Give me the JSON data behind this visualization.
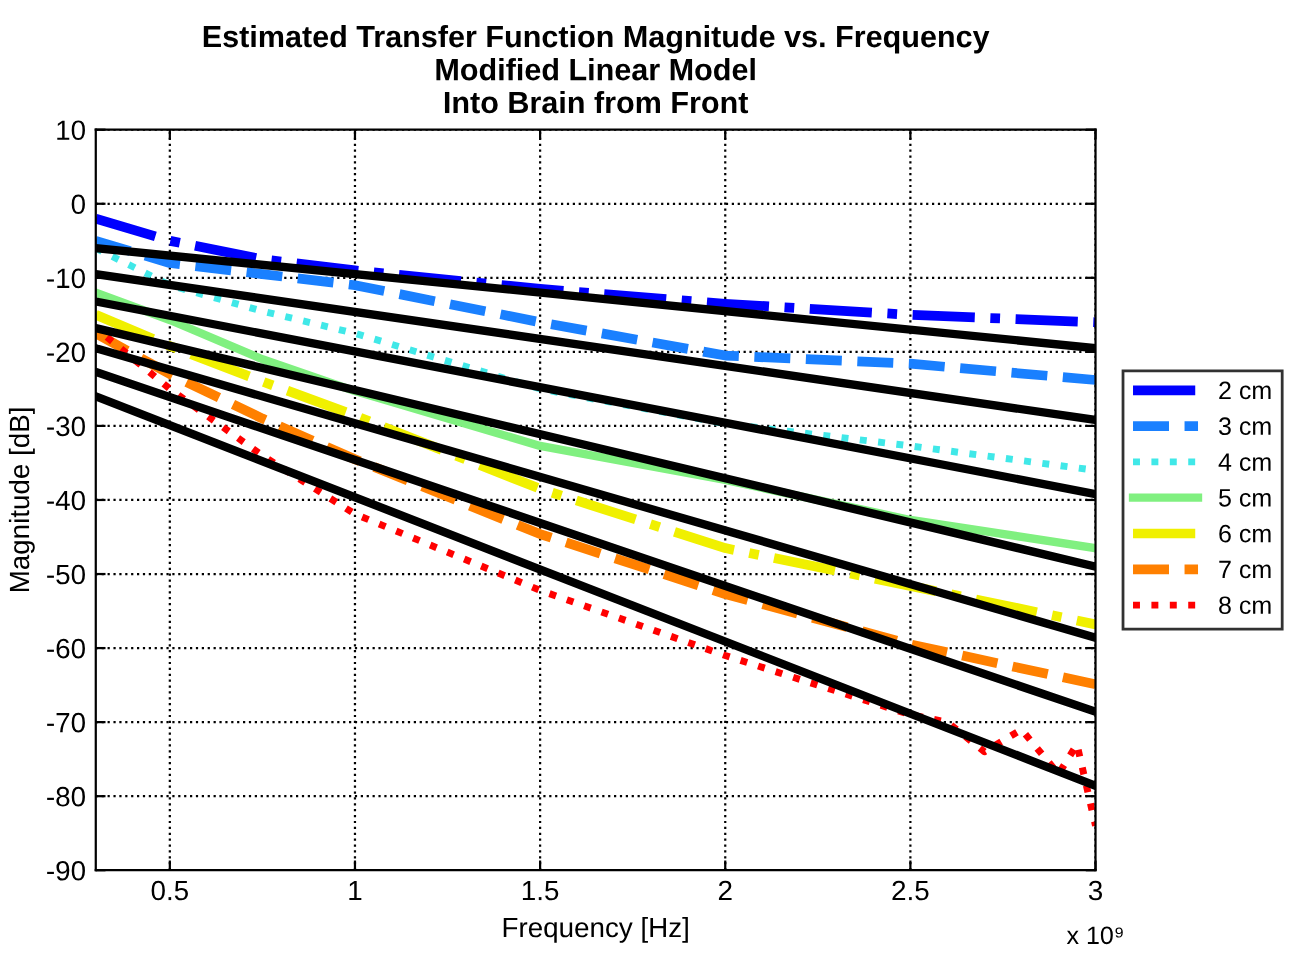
{
  "chart_data": {
    "type": "line",
    "title": "Estimated Transfer Function Magnitude vs. Frequency\nModified Linear Model\nInto Brain from Front",
    "xlabel": "Frequency [Hz]",
    "ylabel": "Magnitude [dB]",
    "xlim": [
      0.3,
      3
    ],
    "xticks": [
      0.5,
      1,
      1.5,
      2,
      2.5,
      3
    ],
    "ylim": [
      -90,
      10
    ],
    "yticks": [
      -90,
      -80,
      -70,
      -60,
      -50,
      -40,
      -30,
      -20,
      -10,
      0,
      10
    ],
    "grid": true,
    "legend": "right",
    "annotations": [
      "x 10⁹"
    ],
    "x": [
      0.3,
      0.5,
      0.75,
      1,
      1.5,
      2,
      2.5,
      3
    ],
    "series": [
      {
        "name": "2 cm",
        "color": "#0000ff",
        "line_style": "dashdot",
        "values": [
          -2,
          -5,
          -7.5,
          -9,
          -11.5,
          -13.5,
          -15,
          -16
        ]
      },
      {
        "name": "3 cm",
        "color": "#1a80ff",
        "line_style": "dashed",
        "values": [
          -5,
          -8,
          -9.5,
          -11,
          -16,
          -20.5,
          -21.6,
          -23.8
        ]
      },
      {
        "name": "4 cm",
        "color": "#40e8e8",
        "line_style": "dotted",
        "values": [
          -6,
          -11,
          -14.5,
          -17.5,
          -25,
          -29.7,
          -32.7,
          -36
        ]
      },
      {
        "name": "5 cm",
        "color": "#80f080",
        "line_style": "solid",
        "values": [
          -12,
          -15.7,
          -21,
          -25.3,
          -32.7,
          -37.3,
          -42.7,
          -46.5
        ]
      },
      {
        "name": "6 cm",
        "color": "#f0f000",
        "line_style": "dashdot",
        "values": [
          -15,
          -19.2,
          -24,
          -28.6,
          -38.5,
          -46.5,
          -51.6,
          -56.8
        ]
      },
      {
        "name": "7 cm",
        "color": "#ff8000",
        "line_style": "dashed",
        "values": [
          -17.5,
          -23,
          -29,
          -34.5,
          -44.6,
          -52.7,
          -59.5,
          -64.9
        ]
      },
      {
        "name": "8 cm",
        "color": "#ff0000",
        "line_style": "dotted",
        "x": [
          0.33,
          0.5,
          0.75,
          1,
          1.5,
          2,
          2.5,
          2.6,
          2.7,
          2.8,
          2.9,
          2.95,
          3
        ],
        "values": [
          -18,
          -25,
          -34,
          -41.9,
          -52.2,
          -61,
          -69,
          -70,
          -74,
          -71,
          -77,
          -73,
          -84
        ]
      },
      {
        "color": "#000000",
        "line_style": "solid",
        "x": [
          0.3,
          3
        ],
        "values": [
          -6,
          -19.5
        ]
      },
      {
        "color": "#000000",
        "line_style": "solid",
        "x": [
          0.3,
          3
        ],
        "values": [
          -9.5,
          -29.2
        ]
      },
      {
        "color": "#000000",
        "line_style": "solid",
        "x": [
          0.3,
          3
        ],
        "values": [
          -13.2,
          -39.2
        ]
      },
      {
        "color": "#000000",
        "line_style": "solid",
        "x": [
          0.3,
          3
        ],
        "values": [
          -16.8,
          -49
        ]
      },
      {
        "color": "#000000",
        "line_style": "solid",
        "x": [
          0.3,
          3
        ],
        "values": [
          -19.5,
          -58.6
        ]
      },
      {
        "color": "#000000",
        "line_style": "solid",
        "x": [
          0.3,
          3
        ],
        "values": [
          -22.7,
          -68.6
        ]
      },
      {
        "color": "#000000",
        "line_style": "solid",
        "x": [
          0.3,
          3
        ],
        "values": [
          -26,
          -78.6
        ]
      }
    ]
  }
}
